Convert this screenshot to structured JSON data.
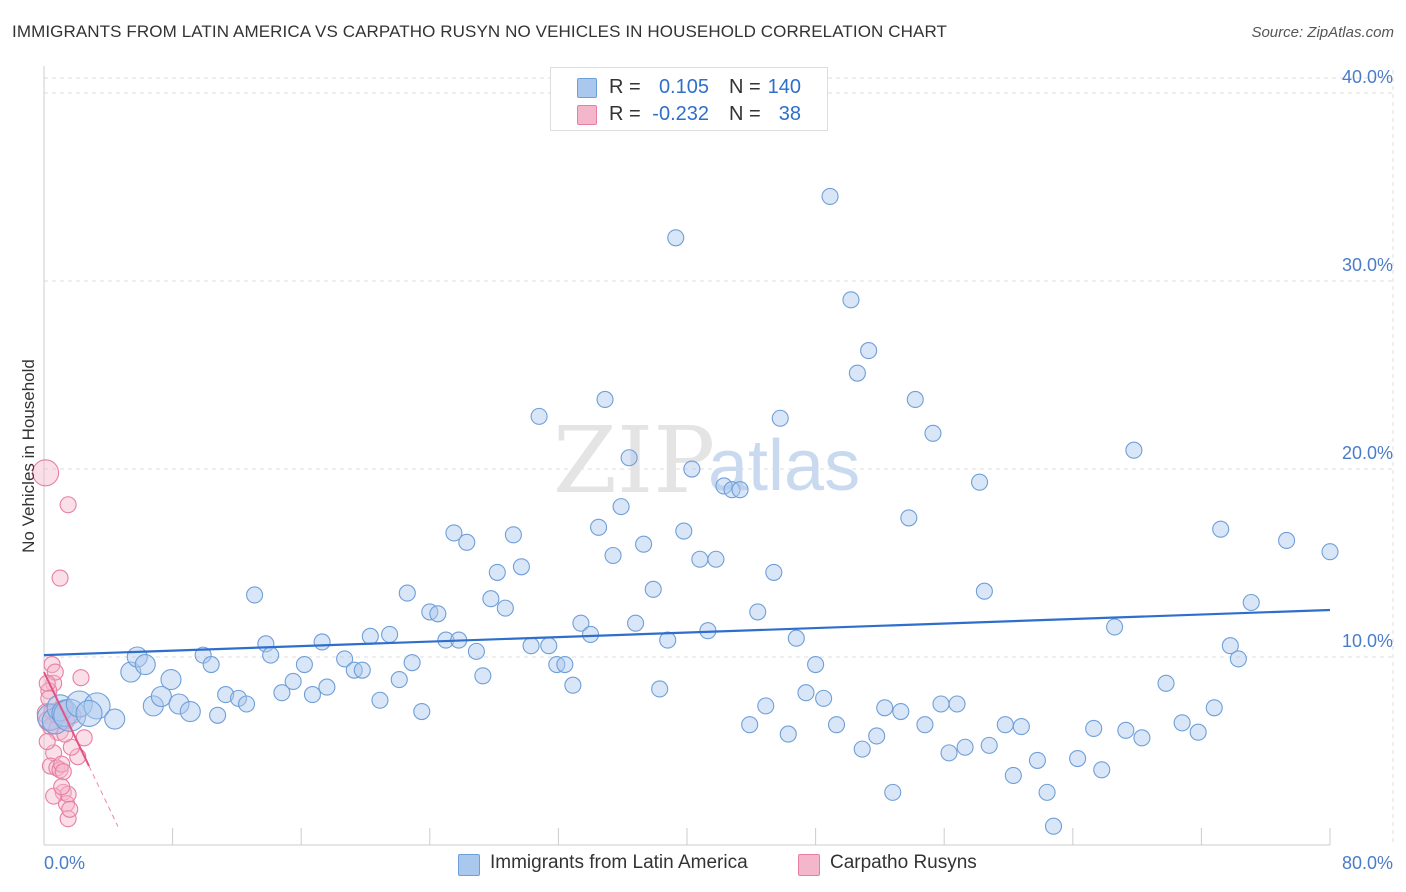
{
  "header": {
    "title": "IMMIGRANTS FROM LATIN AMERICA VS CARPATHO RUSYN NO VEHICLES IN HOUSEHOLD CORRELATION CHART",
    "source": "Source: ZipAtlas.com"
  },
  "legend": {
    "rows": [
      {
        "r_label": "R =",
        "r_value": "0.105",
        "n_label": "N =",
        "n_value": "140"
      },
      {
        "r_label": "R =",
        "r_value": "-0.232",
        "n_label": "N =",
        "n_value": "38"
      }
    ]
  },
  "bottom_legend": {
    "series1": "Immigrants from Latin America",
    "series2": "Carpatho Rusyns"
  },
  "watermark": {
    "zip": "ZIP",
    "atlas": "atlas"
  },
  "colors": {
    "blue_fill": "#aac8ee",
    "blue_stroke": "#6f9fd8",
    "blue_line": "#2f6fcc",
    "pink_fill": "#f4b6cb",
    "pink_stroke": "#e87fa3",
    "pink_line": "#e05585",
    "tick_label": "#4a7cc9",
    "grid": "#dddddd"
  },
  "chart_data": {
    "type": "scatter",
    "title": "IMMIGRANTS FROM LATIN AMERICA VS CARPATHO RUSYN NO VEHICLES IN HOUSEHOLD CORRELATION CHART",
    "xlabel": "",
    "ylabel": "No Vehicles in Household",
    "xlim": [
      0,
      80
    ],
    "ylim": [
      0,
      40.8
    ],
    "x_tick_labels": {
      "left": "0.0%",
      "right": "80.0%"
    },
    "y_ticks": [
      10,
      20,
      30,
      40
    ],
    "y_tick_labels": [
      "10.0%",
      "20.0%",
      "30.0%",
      "40.0%"
    ],
    "grid": true,
    "legend_position": "top-center",
    "series": [
      {
        "name": "Immigrants from Latin America",
        "r": 0.105,
        "n": 140,
        "trend": {
          "x0": 0,
          "y0": 10.1,
          "x1": 80,
          "y1": 12.5
        },
        "points": [
          [
            0.4,
            6.8,
            2
          ],
          [
            0.7,
            6.6,
            2
          ],
          [
            1.0,
            7.3,
            2
          ],
          [
            1.3,
            7.0,
            2
          ],
          [
            1.6,
            6.9,
            3
          ],
          [
            2.2,
            7.5,
            2
          ],
          [
            3.3,
            7.4,
            2
          ],
          [
            4.4,
            6.7,
            1
          ],
          [
            5.4,
            9.2,
            1
          ],
          [
            5.8,
            10.0,
            1
          ],
          [
            6.3,
            9.6,
            1
          ],
          [
            6.8,
            7.4,
            1
          ],
          [
            7.3,
            7.9,
            1
          ],
          [
            7.9,
            8.8,
            1
          ],
          [
            8.4,
            7.5,
            1
          ],
          [
            9.1,
            7.1,
            1
          ],
          [
            9.9,
            10.1,
            0
          ],
          [
            10.4,
            9.6,
            0
          ],
          [
            10.8,
            6.9,
            0
          ],
          [
            11.3,
            8.0,
            0
          ],
          [
            12.1,
            7.8,
            0
          ],
          [
            12.6,
            7.5,
            0
          ],
          [
            13.1,
            13.3,
            0
          ],
          [
            13.8,
            10.7,
            0
          ],
          [
            14.1,
            10.1,
            0
          ],
          [
            14.8,
            8.1,
            0
          ],
          [
            15.5,
            8.7,
            0
          ],
          [
            16.2,
            9.6,
            0
          ],
          [
            16.7,
            8.0,
            0
          ],
          [
            17.3,
            10.8,
            0
          ],
          [
            17.6,
            8.4,
            0
          ],
          [
            18.7,
            9.9,
            0
          ],
          [
            19.3,
            9.3,
            0
          ],
          [
            19.8,
            9.3,
            0
          ],
          [
            20.3,
            11.1,
            0
          ],
          [
            20.9,
            7.7,
            0
          ],
          [
            21.5,
            11.2,
            0
          ],
          [
            22.1,
            8.8,
            0
          ],
          [
            22.6,
            13.4,
            0
          ],
          [
            22.9,
            9.7,
            0
          ],
          [
            23.5,
            7.1,
            0
          ],
          [
            24.0,
            12.4,
            0
          ],
          [
            24.5,
            12.3,
            0
          ],
          [
            25.0,
            10.9,
            0
          ],
          [
            25.5,
            16.6,
            0
          ],
          [
            25.8,
            10.9,
            0
          ],
          [
            26.3,
            16.1,
            0
          ],
          [
            26.9,
            10.3,
            0
          ],
          [
            27.3,
            9.0,
            0
          ],
          [
            27.8,
            13.1,
            0
          ],
          [
            28.2,
            14.5,
            0
          ],
          [
            28.7,
            12.6,
            0
          ],
          [
            29.2,
            16.5,
            0
          ],
          [
            29.7,
            14.8,
            0
          ],
          [
            30.3,
            10.6,
            0
          ],
          [
            30.8,
            22.8,
            0
          ],
          [
            31.4,
            10.6,
            0
          ],
          [
            31.9,
            9.6,
            0
          ],
          [
            32.4,
            9.6,
            0
          ],
          [
            32.9,
            8.5,
            0
          ],
          [
            33.4,
            11.8,
            0
          ],
          [
            34.0,
            11.2,
            0
          ],
          [
            34.5,
            16.9,
            0
          ],
          [
            34.9,
            23.7,
            0
          ],
          [
            35.4,
            15.4,
            0
          ],
          [
            35.9,
            18.0,
            0
          ],
          [
            36.4,
            20.6,
            0
          ],
          [
            36.8,
            11.8,
            0
          ],
          [
            37.3,
            16.0,
            0
          ],
          [
            37.9,
            13.6,
            0
          ],
          [
            38.3,
            8.3,
            0
          ],
          [
            38.8,
            10.9,
            0
          ],
          [
            39.3,
            32.3,
            0
          ],
          [
            39.8,
            16.7,
            0
          ],
          [
            40.3,
            20.0,
            0
          ],
          [
            40.8,
            15.2,
            0
          ],
          [
            41.3,
            11.4,
            0
          ],
          [
            41.8,
            15.2,
            0
          ],
          [
            42.3,
            19.1,
            0
          ],
          [
            42.8,
            18.9,
            0
          ],
          [
            43.3,
            18.9,
            0
          ],
          [
            43.9,
            6.4,
            0
          ],
          [
            44.4,
            12.4,
            0
          ],
          [
            44.9,
            7.4,
            0
          ],
          [
            45.4,
            14.5,
            0
          ],
          [
            45.8,
            22.7,
            0
          ],
          [
            46.3,
            5.9,
            0
          ],
          [
            46.8,
            11.0,
            0
          ],
          [
            47.4,
            8.1,
            0
          ],
          [
            48.0,
            9.6,
            0
          ],
          [
            48.5,
            7.8,
            0
          ],
          [
            48.9,
            34.5,
            0
          ],
          [
            49.3,
            6.4,
            0
          ],
          [
            50.2,
            29.0,
            0
          ],
          [
            50.6,
            25.1,
            0
          ],
          [
            50.9,
            5.1,
            0
          ],
          [
            51.3,
            26.3,
            0
          ],
          [
            51.8,
            5.8,
            0
          ],
          [
            52.3,
            7.3,
            0
          ],
          [
            52.8,
            2.8,
            0
          ],
          [
            53.3,
            7.1,
            0
          ],
          [
            53.8,
            17.4,
            0
          ],
          [
            54.2,
            23.7,
            0
          ],
          [
            54.8,
            6.4,
            0
          ],
          [
            55.3,
            21.9,
            0
          ],
          [
            55.8,
            7.5,
            0
          ],
          [
            56.3,
            4.9,
            0
          ],
          [
            56.8,
            7.5,
            0
          ],
          [
            57.3,
            5.2,
            0
          ],
          [
            58.2,
            19.3,
            0
          ],
          [
            58.5,
            13.5,
            0
          ],
          [
            58.8,
            5.3,
            0
          ],
          [
            59.8,
            6.4,
            0
          ],
          [
            60.3,
            3.7,
            0
          ],
          [
            60.8,
            6.3,
            0
          ],
          [
            61.8,
            4.5,
            0
          ],
          [
            62.4,
            2.8,
            0
          ],
          [
            62.8,
            1.0,
            0
          ],
          [
            64.3,
            4.6,
            0
          ],
          [
            65.3,
            6.2,
            0
          ],
          [
            65.8,
            4.0,
            0
          ],
          [
            66.6,
            11.6,
            0
          ],
          [
            67.8,
            21.0,
            0
          ],
          [
            67.3,
            6.1,
            0
          ],
          [
            68.3,
            5.7,
            0
          ],
          [
            69.8,
            8.6,
            0
          ],
          [
            70.8,
            6.5,
            0
          ],
          [
            71.8,
            6.0,
            0
          ],
          [
            72.8,
            7.3,
            0
          ],
          [
            73.2,
            16.8,
            0
          ],
          [
            73.8,
            10.6,
            0
          ],
          [
            74.3,
            9.9,
            0
          ],
          [
            75.1,
            12.9,
            0
          ],
          [
            77.3,
            16.2,
            0
          ],
          [
            80.0,
            15.6,
            0
          ],
          [
            2.8,
            7.0,
            2
          ]
        ]
      },
      {
        "name": "Carpatho Rusyns",
        "r": -0.232,
        "n": 38,
        "trend": {
          "x0": 0,
          "y0": 9.2,
          "x1": 2.8,
          "y1": 4.2,
          "dashed_to_x": 4.6
        },
        "points": [
          [
            0.1,
            19.8,
            2
          ],
          [
            0.2,
            7.0,
            1
          ],
          [
            0.3,
            6.6,
            1
          ],
          [
            0.4,
            6.3,
            0
          ],
          [
            0.5,
            7.1,
            0
          ],
          [
            0.6,
            8.6,
            0
          ],
          [
            0.5,
            9.6,
            0
          ],
          [
            0.7,
            9.2,
            0
          ],
          [
            0.3,
            8.2,
            0
          ],
          [
            0.6,
            4.9,
            0
          ],
          [
            0.4,
            4.2,
            0
          ],
          [
            0.8,
            4.1,
            0
          ],
          [
            1.0,
            4.0,
            0
          ],
          [
            1.1,
            4.3,
            0
          ],
          [
            1.2,
            3.9,
            0
          ],
          [
            0.9,
            6.1,
            1
          ],
          [
            1.1,
            7.1,
            1
          ],
          [
            1.3,
            7.3,
            0
          ],
          [
            1.4,
            6.6,
            0
          ],
          [
            1.2,
            2.8,
            0
          ],
          [
            1.4,
            2.2,
            0
          ],
          [
            1.5,
            2.7,
            0
          ],
          [
            1.5,
            1.4,
            0
          ],
          [
            1.6,
            1.9,
            0
          ],
          [
            1.0,
            14.2,
            0
          ],
          [
            1.5,
            18.1,
            0
          ],
          [
            2.1,
            4.7,
            0
          ],
          [
            2.3,
            8.9,
            0
          ],
          [
            2.5,
            5.7,
            0
          ],
          [
            1.8,
            6.9,
            0
          ],
          [
            0.2,
            5.5,
            0
          ],
          [
            0.8,
            6.9,
            0
          ],
          [
            0.2,
            8.6,
            0
          ],
          [
            0.6,
            2.6,
            0
          ],
          [
            1.1,
            3.1,
            0
          ],
          [
            1.7,
            5.2,
            0
          ],
          [
            0.3,
            7.8,
            0
          ],
          [
            1.3,
            5.9,
            0
          ]
        ]
      }
    ]
  }
}
